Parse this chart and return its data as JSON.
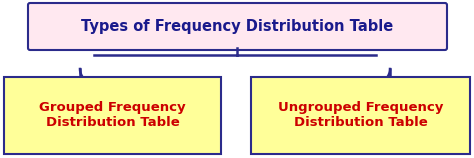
{
  "title": "Types of Frequency Distribution Table",
  "left_box": "Grouped Frequency\nDistribution Table",
  "right_box": "Ungrouped Frequency\nDistribution Table",
  "title_bg_top": "#e8e8ff",
  "title_bg": "#ffe8f0",
  "title_border": "#2b2b8b",
  "title_text_color": "#1a1a8c",
  "child_bg": "#ffff99",
  "child_border": "#2b2b8b",
  "child_text_color": "#cc0000",
  "line_color": "#2b2b8b",
  "bg_color": "#ffffff",
  "title_fontsize": 10.5,
  "child_fontsize": 9.5
}
